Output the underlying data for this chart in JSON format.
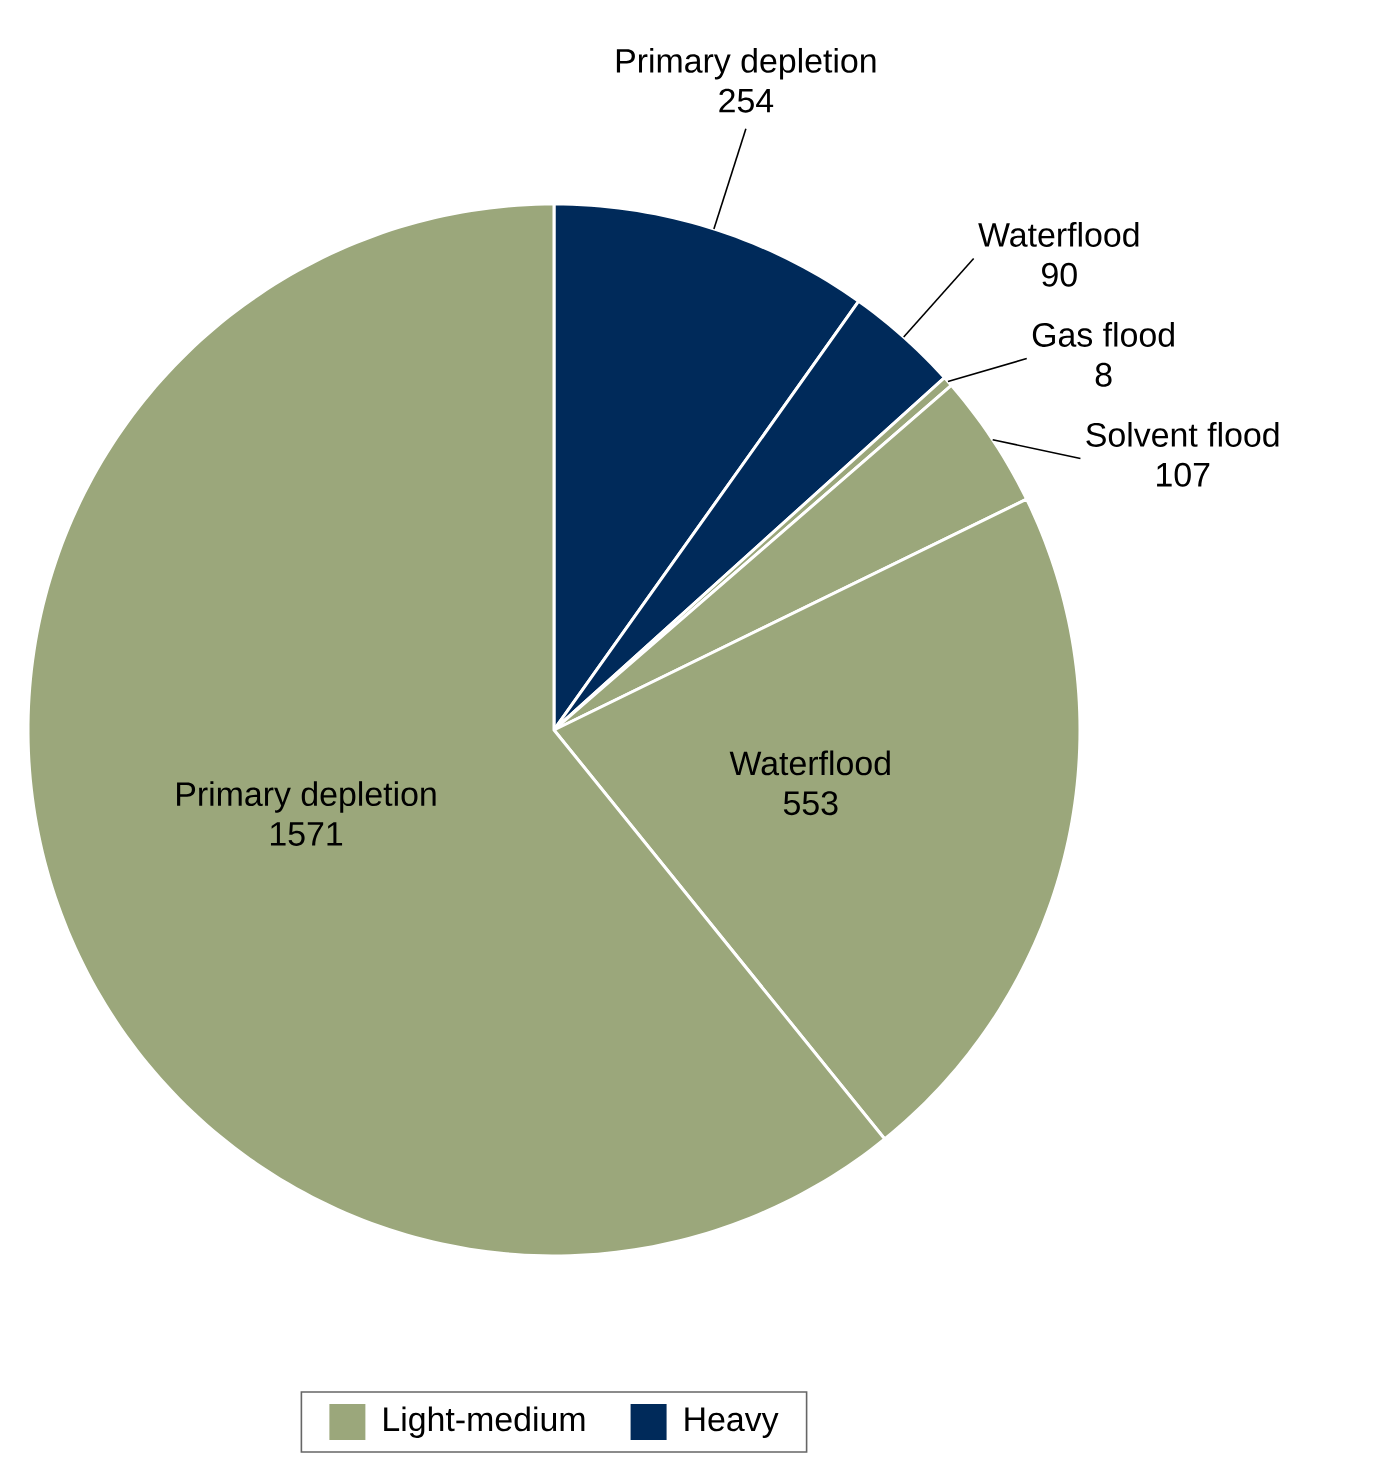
{
  "chart_data": {
    "type": "pie",
    "categories": [
      "Primary depletion",
      "Waterflood",
      "Gas flood",
      "Solvent flood",
      "Waterflood",
      "Primary depletion"
    ],
    "values": [
      254,
      90,
      8,
      107,
      553,
      1571
    ],
    "colors": [
      "#002a5a",
      "#002a5a",
      "#9ba77b",
      "#9ba77b",
      "#9ba77b",
      "#9ba77b"
    ],
    "annotations": [
      "Light-medium",
      "Heavy"
    ],
    "data_labels": true
  }
}
